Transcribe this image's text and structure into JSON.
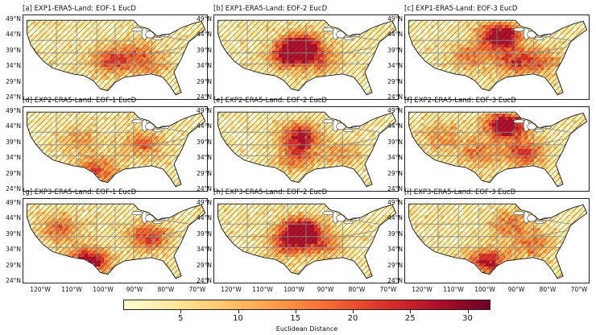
{
  "panels": [
    {
      "title": "[a] EXP1-ERA5-Land: EOF-1 EucD",
      "hot": [
        [
          0.48,
          0.55,
          0.55
        ],
        [
          0.62,
          0.45,
          0.35
        ],
        [
          0.7,
          0.62,
          0.25
        ]
      ]
    },
    {
      "title": "[b] EXP1-ERA5-Land: EOF-2 EucD",
      "hot": [
        [
          0.47,
          0.38,
          0.95
        ],
        [
          0.4,
          0.5,
          0.55
        ],
        [
          0.58,
          0.55,
          0.35
        ]
      ]
    },
    {
      "title": "[c] EXP1-ERA5-Land: EOF-3 EucD",
      "hot": [
        [
          0.52,
          0.25,
          1.0
        ],
        [
          0.6,
          0.55,
          0.55
        ],
        [
          0.35,
          0.5,
          0.4
        ],
        [
          0.75,
          0.55,
          0.35
        ]
      ]
    },
    {
      "title": "[d] EXP2-ERA5-Land: EOF-1 EucD",
      "hot": [
        [
          0.4,
          0.75,
          0.55
        ],
        [
          0.65,
          0.45,
          0.45
        ],
        [
          0.3,
          0.4,
          0.3
        ]
      ]
    },
    {
      "title": "[e] EXP2-ERA5-Land: EOF-2 EucD",
      "hot": [
        [
          0.47,
          0.35,
          0.75
        ],
        [
          0.45,
          0.6,
          0.45
        ],
        [
          0.7,
          0.55,
          0.3
        ]
      ]
    },
    {
      "title": "[f] EXP2-ERA5-Land: EOF-3 EucD",
      "hot": [
        [
          0.55,
          0.22,
          1.0
        ],
        [
          0.65,
          0.55,
          0.6
        ],
        [
          0.4,
          0.55,
          0.4
        ],
        [
          0.2,
          0.35,
          0.35
        ]
      ]
    },
    {
      "title": "[g] EXP3-ERA5-Land: EOF-1 EucD",
      "hot": [
        [
          0.35,
          0.75,
          0.9
        ],
        [
          0.68,
          0.45,
          0.6
        ],
        [
          0.2,
          0.35,
          0.45
        ]
      ]
    },
    {
      "title": "[h] EXP3-ERA5-Land: EOF-2 EucD",
      "hot": [
        [
          0.47,
          0.38,
          0.95
        ],
        [
          0.4,
          0.55,
          0.5
        ],
        [
          0.6,
          0.55,
          0.4
        ]
      ]
    },
    {
      "title": "[i] EXP3-ERA5-Land: EOF-3 EucD",
      "hot": [
        [
          0.45,
          0.75,
          0.75
        ],
        [
          0.58,
          0.3,
          0.45
        ],
        [
          0.7,
          0.55,
          0.4
        ]
      ]
    }
  ],
  "lat_labels": [
    "49°N",
    "44°N",
    "39°N",
    "34°N",
    "29°N",
    "24°N"
  ],
  "lon_labels": [
    "120°W",
    "110°W",
    "100°W",
    "90°W",
    "80°W",
    "70°W"
  ],
  "colorbar": {
    "ticks": [
      "5",
      "10",
      "15",
      "20",
      "25",
      "30"
    ],
    "label": "Euclidean Distance",
    "colors": [
      "#fffdd0",
      "#fee79a",
      "#fdc46a",
      "#fc9a48",
      "#f66a34",
      "#e0352a",
      "#b3102a",
      "#6b0025"
    ]
  }
}
